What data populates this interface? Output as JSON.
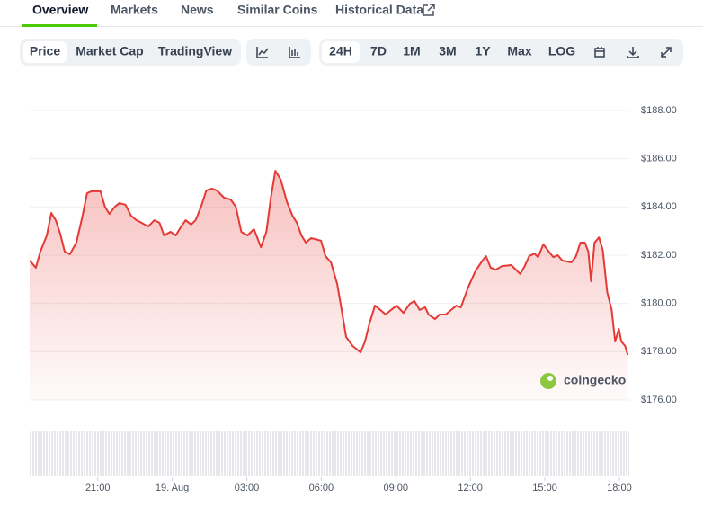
{
  "tabs": [
    "Overview",
    "Markets",
    "News",
    "Similar Coins",
    "Historical Data"
  ],
  "chart_buttons": [
    "Price",
    "Market Cap",
    "TradingView"
  ],
  "range_buttons": [
    "24H",
    "7D",
    "1M",
    "3M",
    "1Y",
    "Max",
    "LOG"
  ],
  "chart_data": {
    "type": "area",
    "color": "#e53935",
    "watermark": "coingecko",
    "grid": true,
    "x": [
      18.26,
      18.51,
      18.69,
      18.95,
      19.13,
      19.31,
      19.49,
      19.67,
      19.88,
      20.14,
      20.39,
      20.57,
      20.75,
      21.11,
      21.29,
      21.47,
      21.69,
      21.87,
      22.12,
      22.34,
      22.56,
      22.77,
      23.03,
      23.28,
      23.49,
      23.67,
      23.93,
      24.14,
      24.36,
      24.54,
      24.76,
      24.94,
      25.16,
      25.37,
      25.59,
      25.8,
      26.09,
      26.35,
      26.56,
      26.78,
      27.03,
      27.29,
      27.57,
      27.79,
      27.97,
      28.15,
      28.37,
      28.62,
      28.84,
      29.02,
      29.2,
      29.38,
      29.59,
      29.99,
      30.17,
      30.39,
      30.64,
      30.82,
      31.0,
      31.26,
      31.58,
      31.76,
      31.94,
      32.16,
      32.38,
      32.59,
      32.81,
      33.03,
      33.31,
      33.57,
      33.75,
      33.96,
      34.18,
      34.32,
      34.58,
      34.76,
      35.01,
      35.23,
      35.44,
      35.62,
      35.91,
      36.2,
      36.49,
      36.63,
      36.82,
      37.03,
      37.28,
      37.65,
      37.83,
      38.01,
      38.19,
      38.37,
      38.58,
      38.73,
      38.94,
      39.16,
      39.34,
      39.52,
      39.7,
      40.06,
      40.24,
      40.43,
      40.61,
      40.75,
      40.86,
      41.0,
      41.18,
      41.33,
      41.51,
      41.69,
      41.83,
      41.98,
      42.08,
      42.23,
      42.34
    ],
    "values": [
      181.78,
      181.48,
      182.15,
      182.82,
      183.75,
      183.45,
      182.89,
      182.15,
      182.04,
      182.52,
      183.64,
      184.57,
      184.65,
      184.65,
      184.01,
      183.71,
      184.01,
      184.16,
      184.09,
      183.64,
      183.45,
      183.34,
      183.19,
      183.45,
      183.34,
      182.82,
      182.97,
      182.82,
      183.19,
      183.45,
      183.27,
      183.45,
      184.01,
      184.68,
      184.76,
      184.68,
      184.38,
      184.31,
      184.01,
      182.97,
      182.82,
      183.08,
      182.33,
      182.97,
      184.38,
      185.5,
      185.13,
      184.2,
      183.64,
      183.34,
      182.82,
      182.52,
      182.71,
      182.6,
      181.96,
      181.7,
      180.81,
      179.73,
      178.61,
      178.24,
      177.97,
      178.42,
      179.17,
      179.91,
      179.73,
      179.54,
      179.73,
      179.91,
      179.61,
      179.99,
      180.1,
      179.73,
      179.84,
      179.54,
      179.35,
      179.54,
      179.54,
      179.73,
      179.91,
      179.84,
      180.66,
      181.33,
      181.78,
      181.96,
      181.48,
      181.4,
      181.55,
      181.59,
      181.4,
      181.22,
      181.55,
      181.96,
      182.07,
      181.92,
      182.45,
      182.15,
      181.92,
      182.0,
      181.78,
      181.7,
      181.92,
      182.52,
      182.52,
      182.15,
      180.92,
      182.52,
      182.74,
      182.22,
      180.47,
      179.73,
      178.42,
      178.94,
      178.42,
      178.24,
      177.86
    ],
    "xlim": [
      18.26,
      42.4
    ],
    "xticks": [
      {
        "value": 21,
        "label": "21:00"
      },
      {
        "value": 24,
        "label": "19. Aug"
      },
      {
        "value": 27,
        "label": "03:00"
      },
      {
        "value": 30,
        "label": "06:00"
      },
      {
        "value": 33,
        "label": "09:00"
      },
      {
        "value": 36,
        "label": "12:00"
      },
      {
        "value": 39,
        "label": "15:00"
      },
      {
        "value": 42,
        "label": "18:00"
      }
    ],
    "ylim": [
      176,
      188
    ],
    "yticks": [
      {
        "value": 176,
        "label": "$176.00"
      },
      {
        "value": 178,
        "label": "$178.00"
      },
      {
        "value": 180,
        "label": "$180.00"
      },
      {
        "value": 182,
        "label": "$182.00"
      },
      {
        "value": 184,
        "label": "$184.00"
      },
      {
        "value": 186,
        "label": "$186.00"
      },
      {
        "value": 188,
        "label": "$188.00"
      }
    ]
  }
}
